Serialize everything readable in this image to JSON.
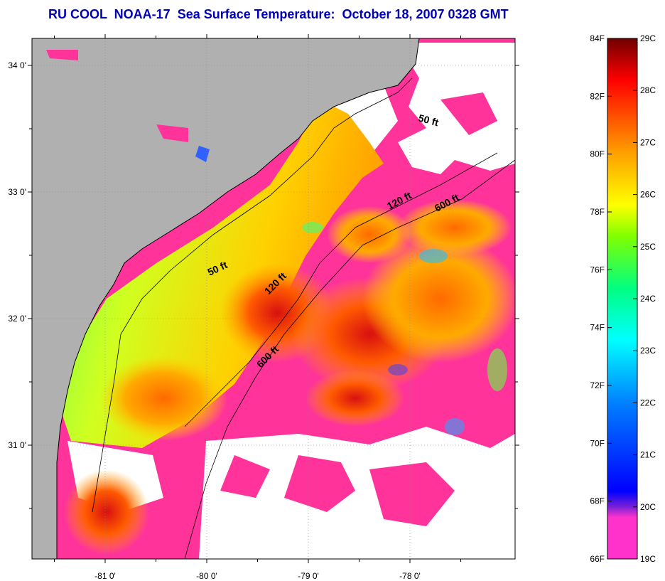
{
  "title": "RU COOL  NOAA-17  Sea Surface Temperature:  October 18, 2007 0328 GMT",
  "map": {
    "lat_ticks": [
      {
        "value": 34.0,
        "label": "34 0'"
      },
      {
        "value": 33.0,
        "label": "33 0'"
      },
      {
        "value": 32.0,
        "label": "32 0'"
      },
      {
        "value": 31.0,
        "label": "31 0'"
      }
    ],
    "lon_ticks": [
      {
        "value": -81.0,
        "label": "-81 0'"
      },
      {
        "value": -80.0,
        "label": "-80 0'"
      },
      {
        "value": -79.0,
        "label": "-79 0'"
      },
      {
        "value": -78.0,
        "label": "-78 0'"
      }
    ],
    "contour_labels": [
      {
        "id": "c50-north",
        "text": "50 ft"
      },
      {
        "id": "c120-north",
        "text": "120 ft"
      },
      {
        "id": "c600-north",
        "text": "600 ft"
      },
      {
        "id": "c50-mid",
        "text": "50 ft"
      },
      {
        "id": "c120-mid",
        "text": "120 ft"
      },
      {
        "id": "c600-south",
        "text": "600 ft"
      }
    ],
    "colors": {
      "land": "#b0b0b0",
      "cloud": "#ffffff",
      "cold_mask": "#ff3399"
    }
  },
  "colorbar": {
    "fahrenheit": [
      "84F",
      "82F",
      "80F",
      "78F",
      "76F",
      "74F",
      "72F",
      "70F",
      "68F",
      "66F"
    ],
    "celsius": [
      "29C",
      "28C",
      "27C",
      "26C",
      "25C",
      "24C",
      "23C",
      "22C",
      "21C",
      "20C",
      "19C"
    ],
    "range_f": [
      66,
      84
    ],
    "range_c": [
      19,
      29
    ],
    "gradient": [
      "#ff33cc",
      "#8a2be2",
      "#0000ff",
      "#0080ff",
      "#00ffff",
      "#00ff80",
      "#80ff00",
      "#ffff00",
      "#ffa000",
      "#ff5000",
      "#ff0000",
      "#b00000",
      "#700000"
    ]
  }
}
